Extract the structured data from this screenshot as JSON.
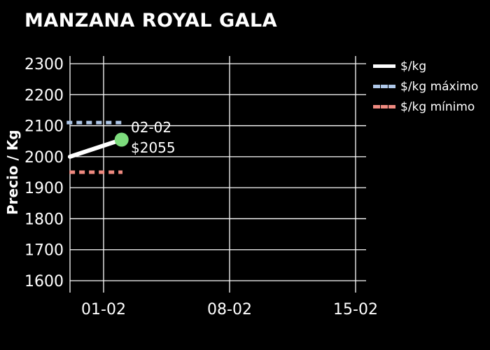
{
  "theme": {
    "background": "#000000",
    "text_color": "#ffffff",
    "grid_color": "#ffffff"
  },
  "chart_data": {
    "type": "line",
    "title": "MANZANA ROYAL GALA",
    "ylabel": "Precio / Kg",
    "xlabel": "",
    "ylim": [
      1600,
      2300
    ],
    "yticks": [
      2300,
      2200,
      2100,
      2000,
      1900,
      1800,
      1700,
      1600
    ],
    "xticks": [
      "01-02",
      "08-02",
      "15-02"
    ],
    "x_unit": "days relative to first x tick (01-02)",
    "grid": "on",
    "legend_position": "top-right",
    "marker_color": "#7ddc7d",
    "series": [
      {
        "name": "$/kg",
        "color": "#ffffff",
        "style": "solid",
        "x": [
          -1.87,
          1.0
        ],
        "values": [
          2000,
          2055
        ]
      },
      {
        "name": "$/kg máximo",
        "color": "#aec7e8",
        "style": "dashed",
        "x": [
          -2.05,
          1.15
        ],
        "values": [
          2110,
          2110
        ]
      },
      {
        "name": "$/kg mínimo",
        "color": "#ef8a80",
        "style": "dashed",
        "x": [
          -1.9,
          1.05
        ],
        "values": [
          1950,
          1950
        ]
      }
    ],
    "annotation": {
      "date": "02-02",
      "price": "$2055"
    }
  }
}
